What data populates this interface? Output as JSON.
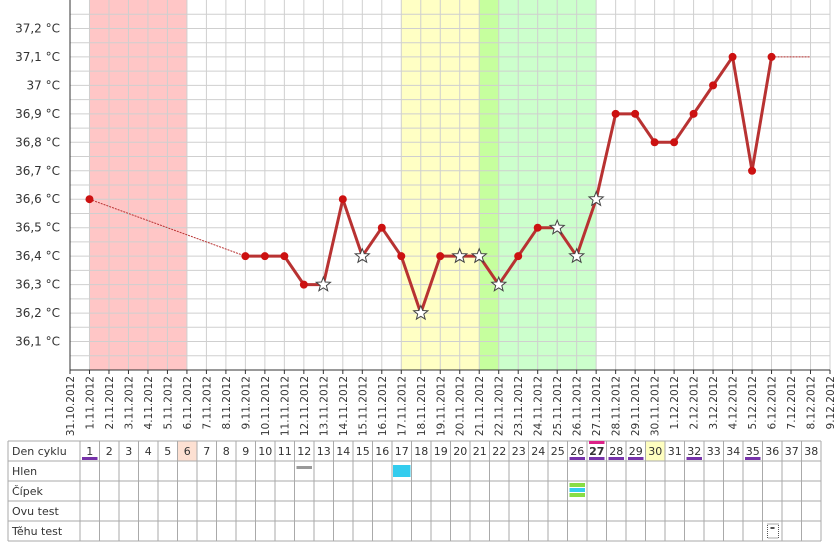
{
  "chart_data": {
    "type": "line",
    "categories": [
      "31.10.2012",
      "1.11.2012",
      "2.11.2012",
      "3.11.2012",
      "4.11.2012",
      "5.11.2012",
      "6.11.2012",
      "7.11.2012",
      "8.11.2012",
      "9.11.2012",
      "10.11.2012",
      "11.11.2012",
      "12.11.2012",
      "13.11.2012",
      "14.11.2012",
      "15.11.2012",
      "16.11.2012",
      "17.11.2012",
      "18.11.2012",
      "19.11.2012",
      "20.11.2012",
      "21.11.2012",
      "22.11.2012",
      "23.11.2012",
      "24.11.2012",
      "25.11.2012",
      "26.11.2012",
      "27.11.2012",
      "28.11.2012",
      "29.11.2012",
      "30.11.2012",
      "1.12.2012",
      "2.12.2012",
      "3.12.2012",
      "4.12.2012",
      "5.12.2012",
      "6.12.2012",
      "7.12.2012",
      "8.12.2012",
      "9.12.2012"
    ],
    "series": [
      {
        "color": "#b83232",
        "values": [
          null,
          36.6,
          null,
          null,
          null,
          null,
          null,
          null,
          null,
          36.4,
          36.4,
          36.4,
          36.3,
          36.3,
          36.6,
          36.4,
          36.5,
          36.4,
          36.2,
          36.4,
          36.4,
          36.4,
          36.3,
          36.4,
          36.5,
          36.5,
          36.4,
          36.6,
          36.9,
          36.9,
          36.8,
          36.8,
          36.9,
          37.0,
          37.1,
          36.7,
          37.1,
          null,
          null,
          null
        ],
        "markers": [
          "dot",
          "dot",
          "dot",
          "dot",
          "dot",
          "dot",
          "dot",
          "dot",
          "dot",
          "dot",
          "dot",
          "dot",
          "dot",
          "star",
          "dot",
          "star",
          "dot",
          "dot",
          "star",
          "dot",
          "star",
          "star",
          "star",
          "dot",
          "dot",
          "star",
          "star",
          "star",
          "dot",
          "dot",
          "dot",
          "dot",
          "dot",
          "dot",
          "dot",
          "dot",
          "dot",
          "dot",
          "dot",
          "dot"
        ]
      }
    ],
    "ylim": [
      36.0,
      37.3
    ],
    "yticks": [
      {
        "value": 36.1,
        "label": "36,1 °C"
      },
      {
        "value": 36.2,
        "label": "36,2 °C"
      },
      {
        "value": 36.3,
        "label": "36,3 °C"
      },
      {
        "value": 36.4,
        "label": "36,4 °C"
      },
      {
        "value": 36.5,
        "label": "36,5 °C"
      },
      {
        "value": 36.6,
        "label": "36,6 °C"
      },
      {
        "value": 36.7,
        "label": "36,7 °C"
      },
      {
        "value": 36.8,
        "label": "36,8 °C"
      },
      {
        "value": 36.9,
        "label": "36,9 °C"
      },
      {
        "value": 37.0,
        "label": "37 °C"
      },
      {
        "value": 37.1,
        "label": "37,1 °C"
      },
      {
        "value": 37.2,
        "label": "37,2 °C"
      }
    ],
    "grid": true,
    "bands": [
      {
        "from": "1.11.2012",
        "to": "6.11.2012",
        "color": "#ffc6c6"
      },
      {
        "from": "17.11.2012",
        "to": "21.11.2012",
        "color": "#ffffc4"
      },
      {
        "from": "21.11.2012",
        "to": "22.11.2012",
        "color": "#c6ff9e"
      },
      {
        "from": "22.11.2012",
        "to": "27.11.2012",
        "color": "#ccffcc"
      }
    ]
  },
  "cycle_table": {
    "labels": [
      "Den cyklu",
      "Hlen",
      "Čípek",
      "Ovu test",
      "Těhu test"
    ],
    "days": [
      1,
      2,
      3,
      4,
      5,
      6,
      7,
      8,
      9,
      10,
      11,
      12,
      13,
      14,
      15,
      16,
      17,
      18,
      19,
      20,
      21,
      22,
      23,
      24,
      25,
      26,
      27,
      28,
      29,
      30,
      31,
      32,
      33,
      34,
      35,
      36,
      37,
      38
    ],
    "underlined": [
      1,
      26,
      27,
      28,
      29,
      32,
      35
    ],
    "top_marked": [
      27
    ],
    "bold": [
      27
    ],
    "highlight": [
      {
        "day": 6,
        "color": "#fde0d2"
      },
      {
        "day": 30,
        "color": "#ffffc0"
      }
    ],
    "entries": [
      {
        "row": 1,
        "day": 12,
        "kind": "bar",
        "colors": [
          "#999999"
        ]
      },
      {
        "row": 1,
        "day": 17,
        "kind": "block",
        "colors": [
          "#33ccee"
        ]
      },
      {
        "row": 2,
        "day": 26,
        "kind": "stripes",
        "colors": [
          "#88dd44",
          "#33ccee",
          "#88dd44"
        ]
      },
      {
        "row": 4,
        "day": 36,
        "kind": "icon",
        "colors": [
          "#555555"
        ]
      }
    ]
  }
}
